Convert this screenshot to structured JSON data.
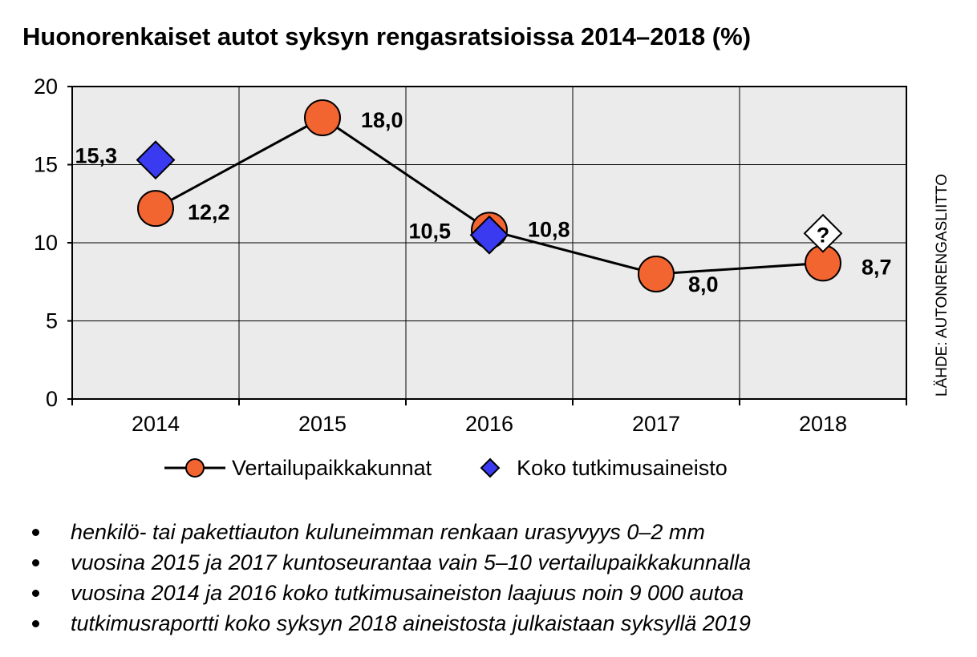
{
  "chart_data": {
    "type": "line",
    "title": "Huonorenkaiset autot syksyn rengasratsioissa 2014–2018 (%)",
    "categories": [
      "2014",
      "2015",
      "2016",
      "2017",
      "2018"
    ],
    "y_ticks": [
      "0",
      "5",
      "10",
      "15",
      "20"
    ],
    "ylim": [
      0,
      20
    ],
    "grid": true,
    "series": [
      {
        "name": "Vertailupaikkakunnat",
        "marker": "circle",
        "color": "#f26430",
        "values": [
          12.2,
          18.0,
          10.8,
          8.0,
          8.7
        ],
        "labels": [
          "12,2",
          "18,0",
          "10,8",
          "8,0",
          "8,7"
        ]
      },
      {
        "name": "Koko tutkimusaineisto",
        "marker": "diamond",
        "color": "#3a3af0",
        "points": [
          {
            "x": "2014",
            "y": 15.3,
            "label": "15,3"
          },
          {
            "x": "2016",
            "y": 10.5,
            "label": "10,5"
          }
        ],
        "unknown_point": {
          "x": "2018",
          "symbol": "?"
        }
      }
    ],
    "source": "LÄHDE: AUTONRENGASLIITTO",
    "legend_position": "bottom"
  },
  "notes": [
    "henkilö- tai pakettiauton kuluneimman renkaan urasyvyys 0–2 mm",
    "vuosina 2015 ja 2017 kuntoseurantaa vain 5–10 vertailupaikkakunnalla",
    "vuosina 2014 ja 2016 koko tutkimusaineiston laajuus noin 9 000 autoa",
    "tutkimusraportti koko syksyn 2018 aineistosta julkaistaan syksyllä 2019"
  ],
  "colors": {
    "plot_background": "#ebebeb",
    "grid": "#000000",
    "circle_fill": "#f26430",
    "diamond_fill": "#3a3af0"
  }
}
